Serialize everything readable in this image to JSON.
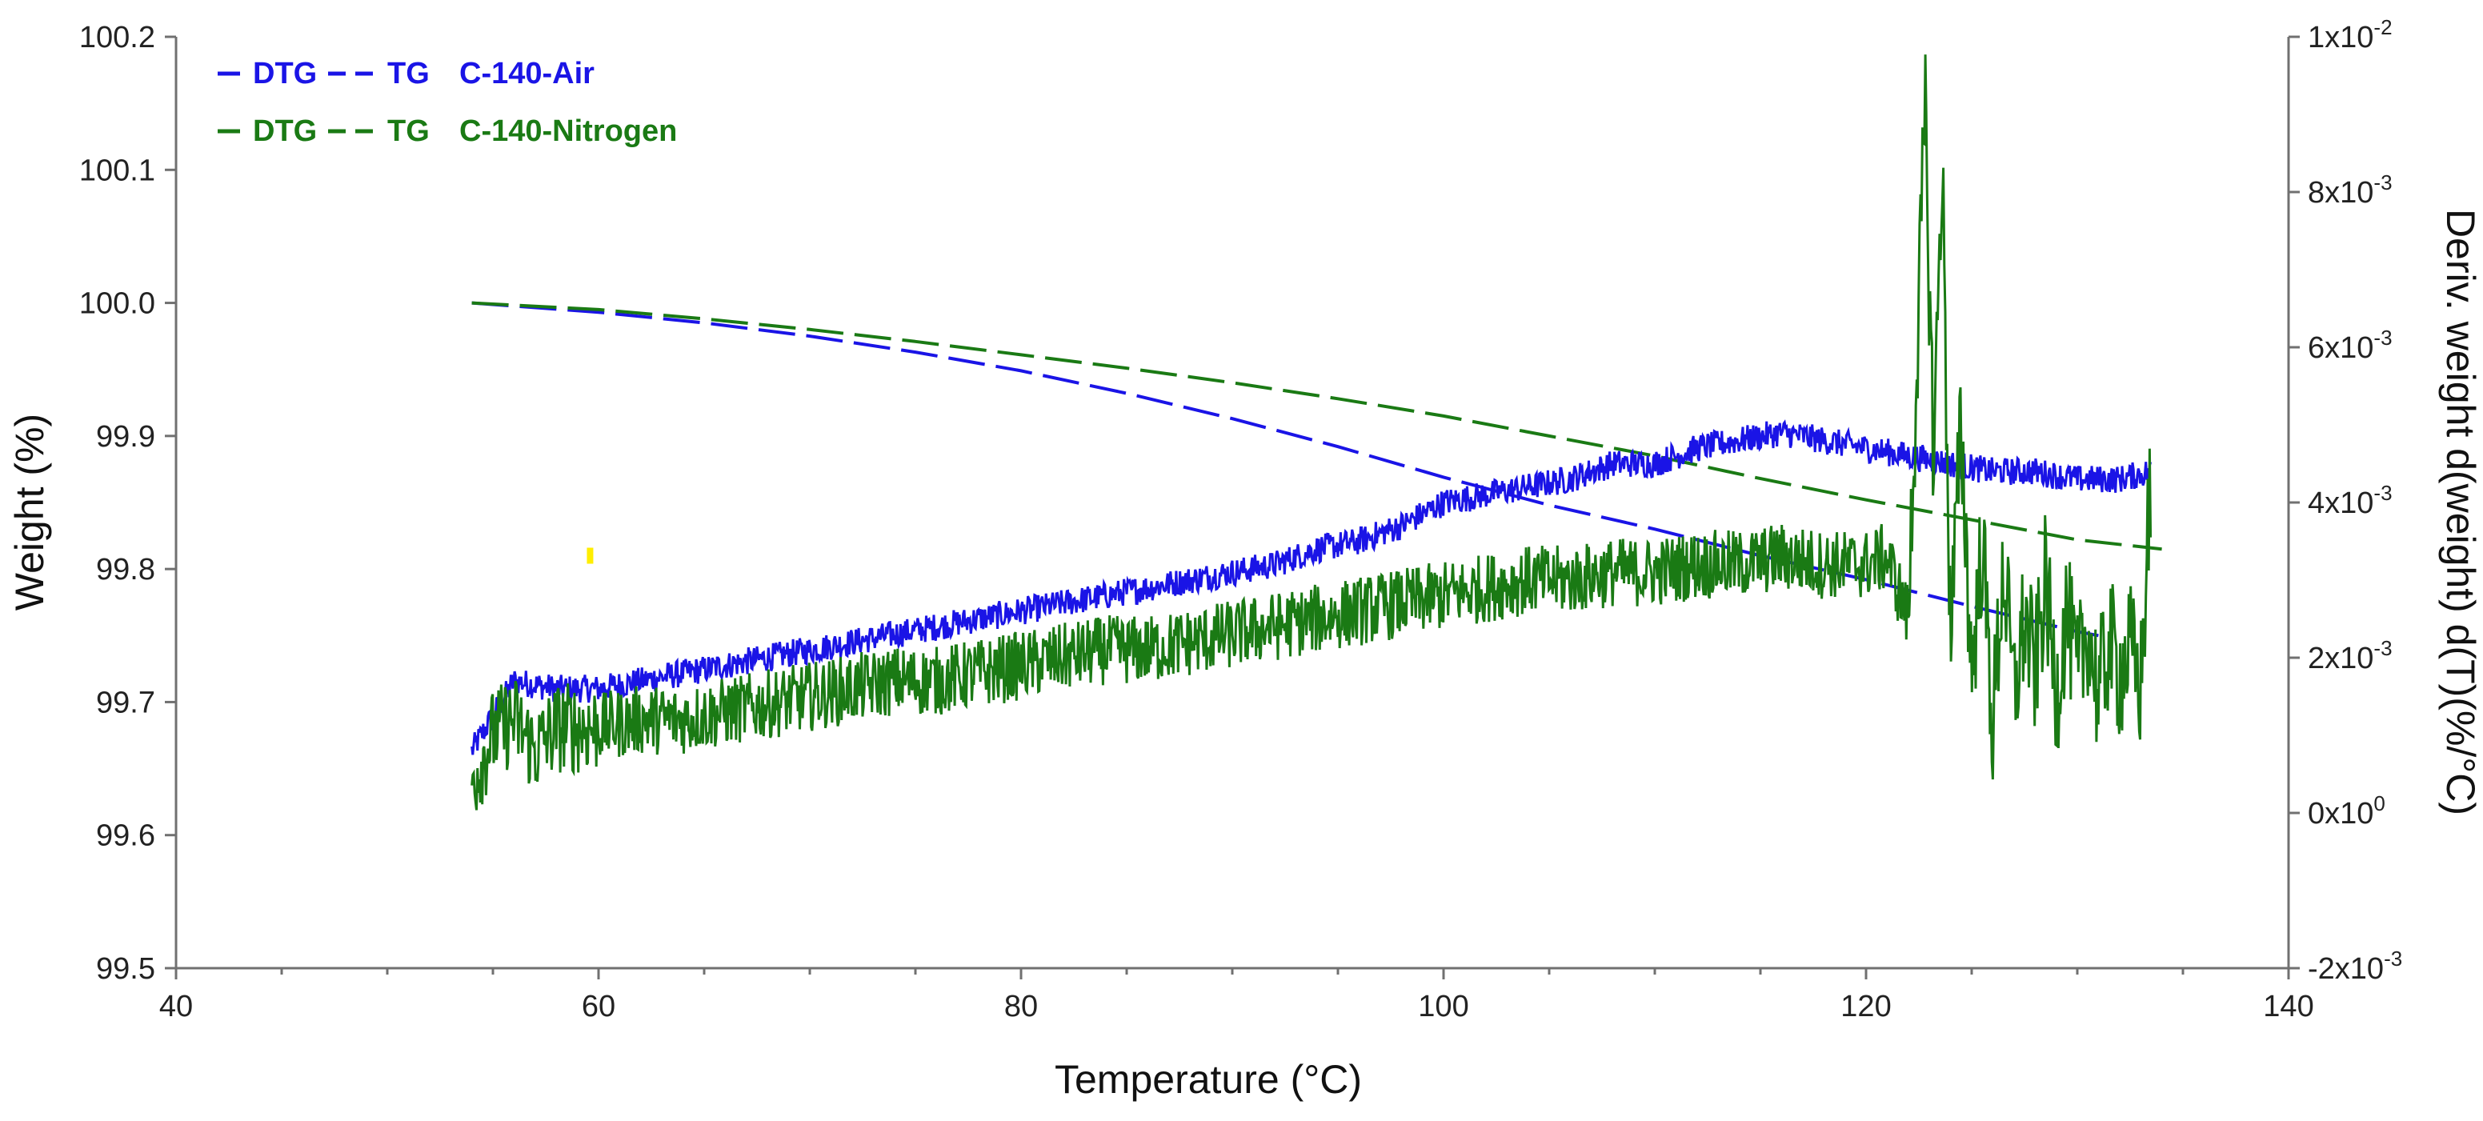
{
  "chart_data": {
    "type": "line",
    "title": "",
    "xlabel": "Temperature (°C)",
    "ylabel_left": "Weight (%)",
    "ylabel_right": "Deriv. weight d(weight) d(T)(%/°C)",
    "xlim": [
      40,
      140
    ],
    "ylim_left": [
      99.5,
      100.2
    ],
    "ylim_right": [
      -0.002,
      0.01
    ],
    "x_ticks": [
      "40",
      "60",
      "80",
      "100",
      "120",
      "140"
    ],
    "x_tick_values": [
      40,
      60,
      80,
      100,
      120,
      140
    ],
    "y_left_ticks": [
      "100.2",
      "100.1",
      "100.0",
      "99.9",
      "99.8",
      "99.7",
      "99.6",
      "99.5"
    ],
    "y_left_tick_values": [
      100.2,
      100.1,
      100.0,
      99.9,
      99.8,
      99.7,
      99.6,
      99.5
    ],
    "y_right_ticks": [
      {
        "base": "1x10",
        "exp": "-2",
        "value": 0.01
      },
      {
        "base": "8x10",
        "exp": "-3",
        "value": 0.008
      },
      {
        "base": "6x10",
        "exp": "-3",
        "value": 0.006
      },
      {
        "base": "4x10",
        "exp": "-3",
        "value": 0.004
      },
      {
        "base": "2x10",
        "exp": "-3",
        "value": 0.002
      },
      {
        "base": "0x10",
        "exp": "0",
        "value": 0.0
      },
      {
        "base": "-2x10",
        "exp": "-3",
        "value": -0.002
      }
    ],
    "legend": [
      {
        "dtg_label": "DTG",
        "tg_label": "TG",
        "name": "C-140-Air",
        "color": "#1a14e6"
      },
      {
        "dtg_label": "DTG",
        "tg_label": "TG",
        "name": "C-140-Nitrogen",
        "color": "#1a7a14"
      }
    ],
    "series": [
      {
        "name": "TG C-140-Air",
        "kind": "TG",
        "axis": "left",
        "color": "#1a14e6",
        "style": "dashed",
        "x": [
          54,
          60,
          65,
          70,
          75,
          80,
          85,
          90,
          95,
          100,
          105,
          110,
          115,
          120,
          125,
          130,
          131
        ],
        "y": [
          100.0,
          99.993,
          99.985,
          99.975,
          99.963,
          99.949,
          99.932,
          99.913,
          99.892,
          99.869,
          99.848,
          99.83,
          99.81,
          99.792,
          99.772,
          99.753,
          99.75
        ]
      },
      {
        "name": "TG C-140-Nitrogen",
        "kind": "TG",
        "axis": "left",
        "color": "#1a7a14",
        "style": "dashed",
        "x": [
          54,
          60,
          65,
          70,
          75,
          80,
          85,
          90,
          95,
          100,
          105,
          110,
          115,
          120,
          125,
          130,
          134
        ],
        "y": [
          100.0,
          99.995,
          99.988,
          99.98,
          99.971,
          99.961,
          99.951,
          99.94,
          99.928,
          99.915,
          99.9,
          99.885,
          99.868,
          99.852,
          99.837,
          99.822,
          99.815
        ]
      },
      {
        "name": "DTG C-140-Air",
        "kind": "DTG",
        "axis": "right",
        "color": "#1a14e6",
        "style": "solid",
        "x": [
          54,
          56,
          58,
          60,
          62,
          64,
          66,
          68,
          70,
          72,
          74,
          76,
          78,
          80,
          82,
          84,
          86,
          88,
          90,
          92,
          94,
          96,
          98,
          100,
          102,
          104,
          106,
          108,
          110,
          112,
          114,
          116,
          118,
          120,
          122,
          124,
          126,
          128,
          130,
          132,
          133.5
        ],
        "y": [
          0.0008,
          0.0017,
          0.0016,
          0.0016,
          0.0017,
          0.0018,
          0.0019,
          0.002,
          0.0021,
          0.0022,
          0.0023,
          0.0024,
          0.0025,
          0.0026,
          0.0027,
          0.0028,
          0.0029,
          0.003,
          0.0031,
          0.0032,
          0.0034,
          0.0035,
          0.0037,
          0.004,
          0.0041,
          0.0042,
          0.0043,
          0.0045,
          0.0045,
          0.0047,
          0.0048,
          0.0049,
          0.0048,
          0.0047,
          0.0046,
          0.0045,
          0.0044,
          0.0044,
          0.0043,
          0.0043,
          0.0044
        ]
      },
      {
        "name": "DTG C-140-Nitrogen",
        "kind": "DTG",
        "axis": "right",
        "color": "#1a7a14",
        "style": "solid",
        "x": [
          54,
          55,
          56,
          57,
          58,
          60,
          62,
          64,
          66,
          68,
          70,
          72,
          74,
          76,
          78,
          80,
          82,
          84,
          86,
          88,
          90,
          92,
          94,
          96,
          98,
          100,
          102,
          104,
          106,
          108,
          110,
          112,
          114,
          116,
          118,
          120,
          121,
          122,
          122.8,
          123.2,
          123.6,
          124,
          124.5,
          125,
          125.5,
          126,
          126.5,
          127,
          127.5,
          128,
          128.5,
          129,
          129.5,
          130,
          130.5,
          131,
          131.5,
          132,
          132.5,
          133,
          133.5
        ],
        "y": [
          0.0004,
          0.001,
          0.0012,
          0.0008,
          0.0011,
          0.0011,
          0.0012,
          0.0012,
          0.0013,
          0.0014,
          0.0015,
          0.0016,
          0.0017,
          0.0017,
          0.0018,
          0.0019,
          0.002,
          0.0021,
          0.0021,
          0.0022,
          0.0023,
          0.0024,
          0.0025,
          0.0026,
          0.0027,
          0.0028,
          0.0029,
          0.003,
          0.003,
          0.0031,
          0.0031,
          0.0032,
          0.0032,
          0.0033,
          0.0032,
          0.0032,
          0.0033,
          0.0025,
          0.009,
          0.0045,
          0.0085,
          0.0022,
          0.005,
          0.0018,
          0.0035,
          0.0011,
          0.0032,
          0.0015,
          0.0025,
          0.0018,
          0.003,
          0.0015,
          0.0026,
          0.0017,
          0.0024,
          0.0015,
          0.0022,
          0.0018,
          0.0021,
          0.0016,
          0.0044
        ]
      }
    ],
    "annotations": [
      {
        "text": "small yellow mark",
        "x": 59.6,
        "y_left": 99.81,
        "color": "#ffee00"
      }
    ]
  }
}
